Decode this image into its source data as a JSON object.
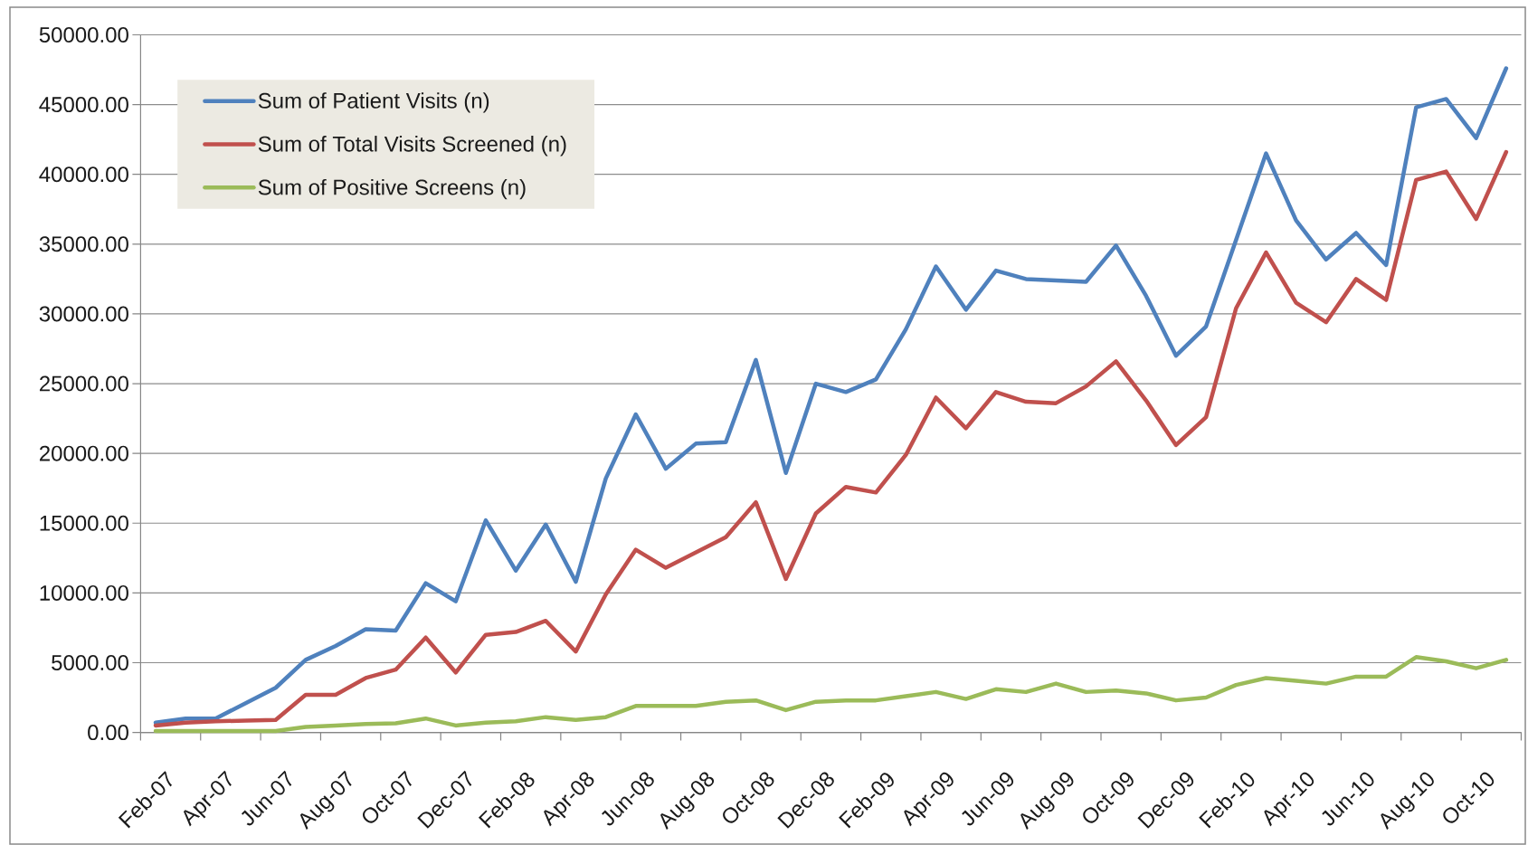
{
  "chart_data": {
    "type": "line",
    "categories": [
      "Feb-07",
      null,
      "Apr-07",
      null,
      "Jun-07",
      null,
      "Aug-07",
      null,
      "Oct-07",
      null,
      "Dec-07",
      null,
      "Feb-08",
      null,
      "Apr-08",
      null,
      "Jun-08",
      null,
      "Aug-08",
      null,
      "Oct-08",
      null,
      "Dec-08",
      null,
      "Feb-09",
      null,
      "Apr-09",
      null,
      "Jun-09",
      null,
      "Aug-09",
      null,
      "Oct-09",
      null,
      "Dec-09",
      null,
      "Feb-10",
      null,
      "Apr-10",
      null,
      "Jun-10",
      null,
      "Aug-10",
      null,
      "Oct-10",
      null
    ],
    "series": [
      {
        "name": "Sum of Patient Visits (n)",
        "color": "#4f81bd",
        "values": [
          700,
          1000,
          1000,
          2100,
          3200,
          5200,
          6200,
          7400,
          7300,
          10700,
          9400,
          15200,
          11600,
          14900,
          10800,
          18200,
          22800,
          18900,
          20700,
          20800,
          26700,
          18600,
          25000,
          24400,
          25300,
          28900,
          33400,
          30300,
          33100,
          32500,
          32400,
          32300,
          34900,
          31300,
          27000,
          29100,
          35300,
          41500,
          36700,
          33900,
          35800,
          33500,
          44800,
          45400,
          42600,
          47600
        ]
      },
      {
        "name": "Sum of Total Visits Screened (n)",
        "color": "#c0504d",
        "values": [
          500,
          700,
          800,
          850,
          900,
          2700,
          2700,
          3900,
          4500,
          6800,
          4300,
          7000,
          7200,
          8000,
          5800,
          9900,
          13100,
          11800,
          12900,
          14000,
          16500,
          11000,
          15700,
          17600,
          17200,
          19900,
          24000,
          21800,
          24400,
          23700,
          23600,
          24800,
          26600,
          23800,
          20600,
          22600,
          30400,
          34400,
          30800,
          29400,
          32500,
          31000,
          39600,
          40200,
          36800,
          41600
        ]
      },
      {
        "name": "Sum of Positive Screens (n)",
        "color": "#9bbb59",
        "values": [
          100,
          100,
          100,
          100,
          100,
          400,
          500,
          600,
          650,
          1000,
          500,
          700,
          800,
          1100,
          900,
          1100,
          1900,
          1900,
          1900,
          2200,
          2300,
          1600,
          2200,
          2300,
          2300,
          2600,
          2900,
          2400,
          3100,
          2900,
          3500,
          2900,
          3000,
          2800,
          2300,
          2500,
          3400,
          3900,
          3700,
          3500,
          4000,
          4000,
          5400,
          5100,
          4600,
          5200
        ]
      }
    ],
    "ylim": [
      0,
      50000
    ],
    "yticks": [
      {
        "value": 0,
        "label": "0.00"
      },
      {
        "value": 5000,
        "label": "5000.00"
      },
      {
        "value": 10000,
        "label": "10000.00"
      },
      {
        "value": 15000,
        "label": "15000.00"
      },
      {
        "value": 20000,
        "label": "20000.00"
      },
      {
        "value": 25000,
        "label": "25000.00"
      },
      {
        "value": 30000,
        "label": "30000.00"
      },
      {
        "value": 35000,
        "label": "35000.00"
      },
      {
        "value": 40000,
        "label": "40000.00"
      },
      {
        "value": 45000,
        "label": "45000.00"
      },
      {
        "value": 50000,
        "label": "50000.00"
      }
    ],
    "grid": "y",
    "legend": "top left",
    "line_style": "solid"
  }
}
